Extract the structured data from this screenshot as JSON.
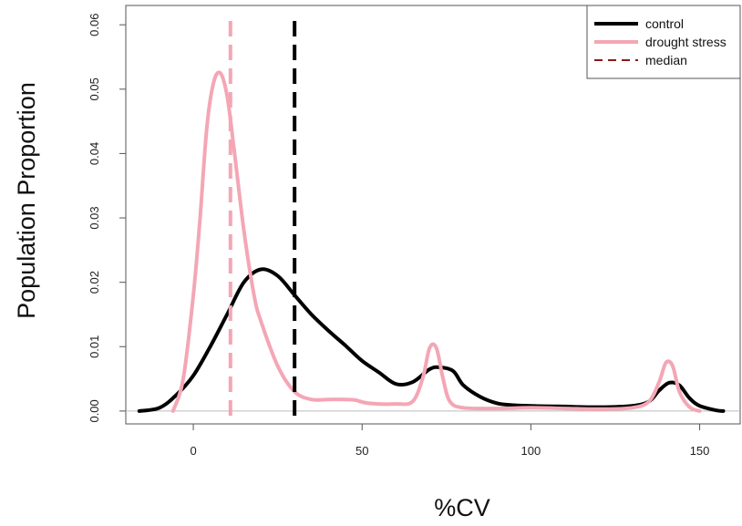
{
  "chart_data": {
    "type": "line",
    "title": "",
    "xlabel": "%CV",
    "ylabel": "Population Proportion",
    "xlim": [
      -20,
      162
    ],
    "ylim": [
      -0.002,
      0.063
    ],
    "x_ticks": [
      0,
      50,
      100,
      150
    ],
    "x_tick_labels": [
      "0",
      "50",
      "100",
      "150"
    ],
    "y_ticks": [
      0.0,
      0.01,
      0.02,
      0.03,
      0.04,
      0.05,
      0.06
    ],
    "y_tick_labels": [
      "0.00",
      "0.01",
      "0.02",
      "0.03",
      "0.04",
      "0.05",
      "0.06"
    ],
    "grid": false,
    "baseline": 0,
    "legend": {
      "position": "top-right",
      "entries": [
        {
          "label": "control",
          "color": "#000000",
          "style": "solid"
        },
        {
          "label": "drought stress",
          "color": "#f4a6b5",
          "style": "solid"
        },
        {
          "label": "median",
          "color": "#8b1a1a",
          "style": "dashed"
        }
      ]
    },
    "series": [
      {
        "name": "control",
        "color": "#000000",
        "x": [
          -16,
          -10,
          -5,
          0,
          5,
          10,
          15,
          20,
          25,
          30,
          35,
          40,
          45,
          50,
          55,
          60,
          65,
          70,
          73,
          77,
          80,
          85,
          90,
          95,
          100,
          110,
          120,
          130,
          135,
          138,
          141,
          144,
          147,
          150,
          155,
          157
        ],
        "y": [
          0.0,
          0.0005,
          0.0025,
          0.0055,
          0.01,
          0.015,
          0.02,
          0.022,
          0.021,
          0.018,
          0.015,
          0.0125,
          0.0102,
          0.0078,
          0.006,
          0.0042,
          0.0045,
          0.0065,
          0.0068,
          0.0062,
          0.004,
          0.0022,
          0.0012,
          0.0009,
          0.0008,
          0.0007,
          0.0006,
          0.0008,
          0.0015,
          0.0032,
          0.0044,
          0.004,
          0.002,
          0.0008,
          0.0001,
          0.0
        ]
      },
      {
        "name": "drought stress",
        "color": "#f4a6b5",
        "x": [
          -6,
          -3,
          0,
          2,
          4,
          6,
          8,
          10,
          12,
          15,
          18,
          20,
          25,
          30,
          35,
          40,
          45,
          48,
          52,
          60,
          65,
          68,
          70,
          72,
          74,
          76,
          80,
          90,
          100,
          110,
          120,
          130,
          135,
          138,
          140,
          142,
          144,
          147,
          150
        ],
        "y": [
          0.0,
          0.005,
          0.018,
          0.03,
          0.044,
          0.051,
          0.0525,
          0.049,
          0.041,
          0.028,
          0.018,
          0.014,
          0.007,
          0.003,
          0.0018,
          0.0018,
          0.0018,
          0.0017,
          0.0012,
          0.0011,
          0.0015,
          0.0052,
          0.0098,
          0.0098,
          0.005,
          0.0015,
          0.0005,
          0.0004,
          0.0005,
          0.0004,
          0.0003,
          0.0005,
          0.0015,
          0.0045,
          0.0075,
          0.007,
          0.003,
          0.0006,
          0.0
        ]
      }
    ],
    "medians": [
      {
        "series": "drought stress",
        "x": 11,
        "color": "#f4a6b5"
      },
      {
        "series": "control",
        "x": 30,
        "color": "#000000"
      }
    ]
  }
}
